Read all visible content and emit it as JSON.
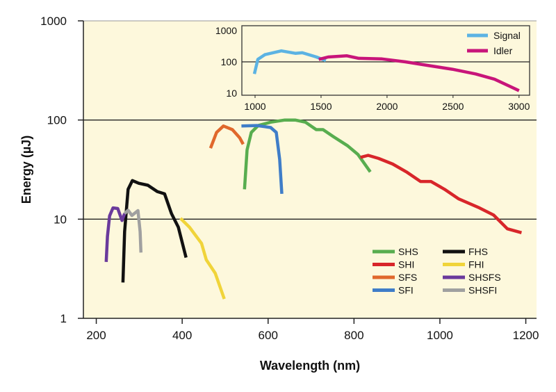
{
  "chart_data": [
    {
      "type": "line",
      "xlabel": "Wavelength (nm)",
      "ylabel": "Energy (µJ)",
      "xlim": [
        170,
        1225
      ],
      "ylim": [
        1,
        1000
      ],
      "yscale": "log",
      "xticks": [
        200,
        400,
        600,
        800,
        1000,
        1200
      ],
      "yticks": [
        1,
        10,
        100,
        1000
      ],
      "grid": "horizontal at 10 and 100",
      "background": "#fdf8dc",
      "legend_position": "bottom-right",
      "series": [
        {
          "name": "SHS",
          "color": "#58ad4f",
          "x": [
            545,
            551,
            561,
            577,
            606,
            639,
            663,
            687,
            712,
            728,
            752,
            785,
            809,
            838
          ],
          "y": [
            20,
            50,
            75,
            88,
            95,
            100,
            100,
            95,
            80,
            80,
            68,
            55,
            45,
            30
          ]
        },
        {
          "name": "SHI",
          "color": "#d8262a",
          "x": [
            815,
            833,
            857,
            890,
            922,
            955,
            979,
            1011,
            1044,
            1092,
            1125,
            1157,
            1190
          ],
          "y": [
            42,
            44,
            41,
            36,
            30,
            24,
            24,
            20,
            16,
            13,
            11,
            8,
            7.3
          ]
        },
        {
          "name": "SFS",
          "color": "#e0682c",
          "x": [
            466,
            480,
            496,
            517,
            534,
            542
          ],
          "y": [
            52,
            75,
            87,
            80,
            66,
            57
          ]
        },
        {
          "name": "SFI",
          "color": "#3f7dc8",
          "x": [
            538,
            574,
            606,
            619,
            627,
            632
          ],
          "y": [
            87,
            88,
            84,
            75,
            40,
            18
          ]
        },
        {
          "name": "FHS",
          "color": "#111111",
          "x": [
            262,
            266,
            274,
            284,
            299,
            320,
            342,
            359,
            375,
            391,
            409
          ],
          "y": [
            2.3,
            7.5,
            20,
            24.5,
            23,
            22,
            19,
            18,
            11.4,
            8.3,
            4.1
          ]
        },
        {
          "name": "FHI",
          "color": "#f0d43a",
          "x": [
            396,
            417,
            445,
            456,
            477,
            498
          ],
          "y": [
            10.2,
            8.3,
            5.7,
            3.9,
            2.85,
            1.57
          ]
        },
        {
          "name": "SHSFS",
          "color": "#6a3a9c",
          "x": [
            223,
            226,
            231,
            239,
            250,
            260,
            266
          ],
          "y": [
            3.7,
            6.7,
            10.8,
            13,
            12.8,
            9.7,
            11.4
          ]
        },
        {
          "name": "SHSFI",
          "color": "#a0a0a0",
          "x": [
            266,
            274,
            283,
            297,
            302,
            304
          ],
          "y": [
            11.4,
            12.3,
            10.9,
            12.2,
            7.5,
            4.6
          ]
        }
      ]
    },
    {
      "type": "line",
      "xlim": [
        900,
        3080
      ],
      "ylim": [
        10,
        1000
      ],
      "yscale": "log",
      "xticks": [
        1000,
        1500,
        2000,
        2500,
        3000
      ],
      "yticks": [
        10,
        100,
        1000
      ],
      "grid": "horizontal at 100",
      "legend_position": "top-right",
      "series": [
        {
          "name": "Signal",
          "color": "#5cb3e3",
          "x": [
            995,
            1021,
            1075,
            1199,
            1305,
            1358,
            1465,
            1536
          ],
          "y": [
            41,
            120,
            170,
            225,
            188,
            195,
            143,
            109
          ]
        },
        {
          "name": "Idler",
          "color": "#c8157a",
          "x": [
            1483,
            1554,
            1696,
            1785,
            1962,
            2139,
            2317,
            2494,
            2672,
            2814,
            3000
          ],
          "y": [
            120,
            143,
            156,
            130,
            124,
            100,
            76,
            58,
            41,
            28,
            12
          ]
        }
      ]
    }
  ]
}
